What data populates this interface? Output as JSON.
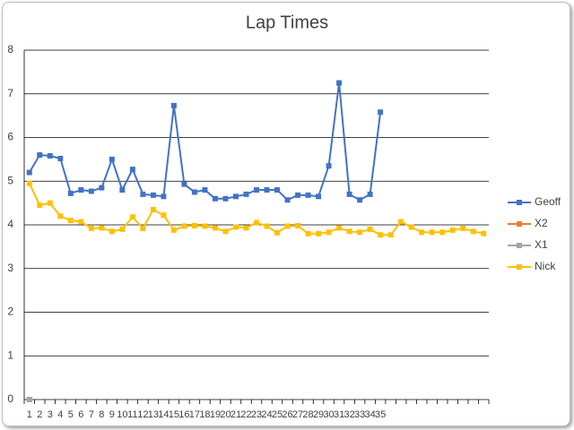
{
  "chart_data": {
    "type": "line",
    "title": "Lap Times",
    "categories": [
      "1",
      "2",
      "3",
      "4",
      "5",
      "6",
      "7",
      "8",
      "9",
      "10",
      "11",
      "12",
      "13",
      "14",
      "15",
      "16",
      "17",
      "18",
      "19",
      "20",
      "21",
      "22",
      "23",
      "24",
      "25",
      "26",
      "27",
      "28",
      "29",
      "30",
      "31",
      "32",
      "33",
      "34",
      "35",
      null,
      null,
      null,
      null,
      null,
      null,
      null,
      null,
      null,
      null
    ],
    "series": [
      {
        "name": "Geoff",
        "color": "#4472c4",
        "values": [
          5.2,
          5.6,
          5.58,
          5.52,
          4.72,
          4.8,
          4.77,
          4.85,
          5.5,
          4.8,
          5.27,
          4.7,
          4.68,
          4.65,
          6.73,
          4.93,
          4.75,
          4.8,
          4.6,
          4.6,
          4.65,
          4.7,
          4.8,
          4.8,
          4.8,
          4.57,
          4.68,
          4.68,
          4.65,
          5.35,
          7.25,
          4.7,
          4.57,
          4.7,
          6.58,
          null,
          null,
          null,
          null,
          null,
          null,
          null,
          null,
          null,
          null
        ]
      },
      {
        "name": "X2",
        "color": "#ed7d31",
        "values": [
          0,
          null,
          null,
          null,
          null,
          null,
          null,
          null,
          null,
          null,
          null,
          null,
          null,
          null,
          null,
          null,
          null,
          null,
          null,
          null,
          null,
          null,
          null,
          null,
          null,
          null,
          null,
          null,
          null,
          null,
          null,
          null,
          null,
          null,
          null,
          null,
          null,
          null,
          null,
          null,
          null,
          null,
          null,
          null,
          null
        ]
      },
      {
        "name": "X1",
        "color": "#a5a5a5",
        "values": [
          0,
          null,
          null,
          null,
          null,
          null,
          null,
          null,
          null,
          null,
          null,
          null,
          null,
          null,
          null,
          null,
          null,
          null,
          null,
          null,
          null,
          null,
          null,
          null,
          null,
          null,
          null,
          null,
          null,
          null,
          null,
          null,
          null,
          null,
          null,
          null,
          null,
          null,
          null,
          null,
          null,
          null,
          null,
          null,
          null
        ]
      },
      {
        "name": "Nick",
        "color": "#ffc000",
        "values": [
          4.95,
          4.45,
          4.5,
          4.2,
          4.1,
          4.07,
          3.92,
          3.93,
          3.85,
          3.9,
          4.18,
          3.92,
          4.35,
          4.22,
          3.88,
          3.97,
          3.98,
          3.97,
          3.93,
          3.85,
          3.95,
          3.93,
          4.05,
          3.97,
          3.82,
          3.97,
          3.98,
          3.8,
          3.8,
          3.83,
          3.93,
          3.85,
          3.83,
          3.9,
          3.77,
          3.77,
          4.07,
          3.95,
          3.83,
          3.83,
          3.83,
          3.88,
          3.92,
          3.85,
          3.8
        ]
      }
    ],
    "ylim": [
      0,
      8
    ],
    "yticks": [
      0,
      1,
      2,
      3,
      4,
      5,
      6,
      7,
      8
    ],
    "grid": true,
    "legend": "right"
  }
}
